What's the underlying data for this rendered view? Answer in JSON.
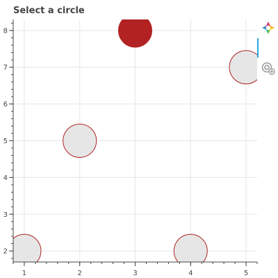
{
  "chart_data": {
    "type": "scatter",
    "title": "Select a circle",
    "xlabel": "",
    "ylabel": "",
    "xlim": [
      0.8,
      5.2
    ],
    "ylim": [
      1.7,
      8.3
    ],
    "x_ticks": [
      1,
      2,
      3,
      4,
      5
    ],
    "y_ticks": [
      2,
      3,
      4,
      5,
      6,
      7,
      8
    ],
    "grid": true,
    "series": [
      {
        "x": [
          1,
          2,
          3,
          4,
          5
        ],
        "y": [
          2,
          5,
          8,
          2,
          7
        ],
        "selected": [
          false,
          false,
          true,
          false,
          false
        ]
      }
    ],
    "colors": {
      "unselected_fill": "#e6e6e6",
      "selected_fill": "#b22222",
      "outline": "#b22222",
      "grid": "#e5e5e5",
      "axis": "#444444"
    }
  },
  "toolbar": {
    "tools": [
      "bokeh-logo-icon",
      "tap-tool-icon"
    ],
    "active_tool": "tap-tool-icon"
  }
}
